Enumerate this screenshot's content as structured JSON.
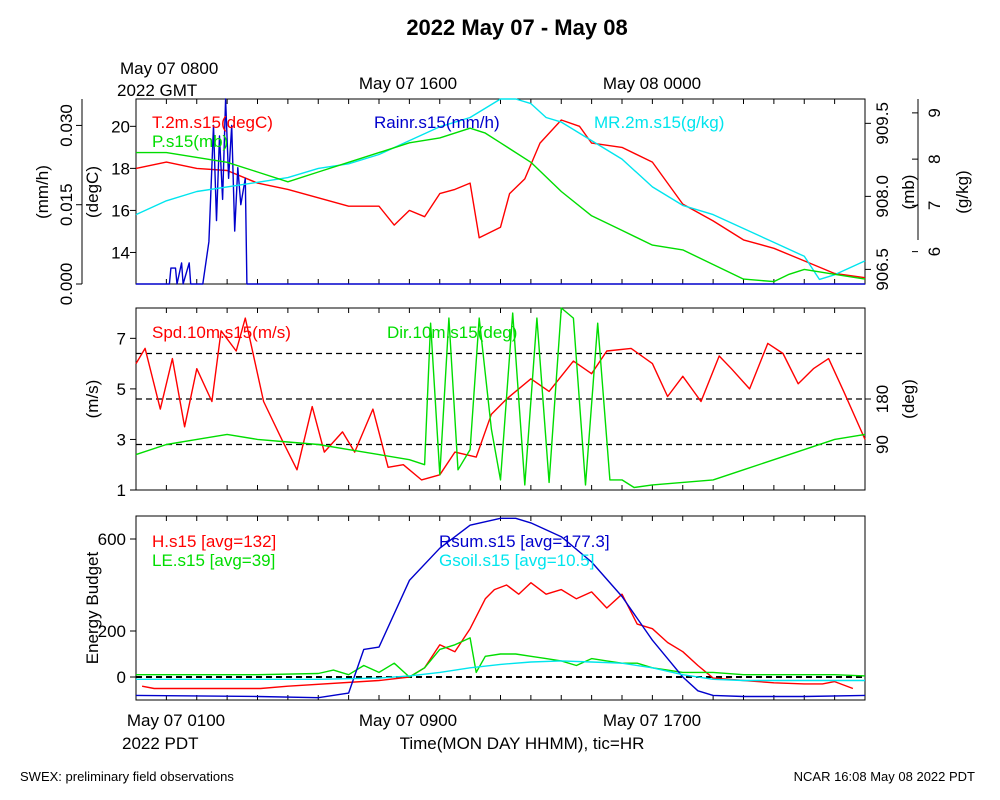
{
  "title": "2022 May 07 - May 08",
  "top_time_labels": {
    "first_line1": "May 07 0800",
    "first_line2": "2022 GMT",
    "second": "May 07 1600",
    "third": "May 08 0000"
  },
  "bottom_time_labels": {
    "first_line1": "May 07 0100",
    "first_line2": "2022 PDT",
    "second": "May 07 0900",
    "third": "May 07 1700",
    "axis_title": "Time(MON DAY HHMM), tic=HR"
  },
  "footer": {
    "left": "SWEX: preliminary field observations",
    "right": "NCAR 16:08 May 08 2022 PDT"
  },
  "colors": {
    "red": "#ff0000",
    "green": "#00dd00",
    "blue": "#0000cc",
    "cyan": "#00e5ee",
    "black": "#000000"
  },
  "chart_data": [
    {
      "type": "line",
      "panel": "top",
      "x_unit": "hours since May 07 0100 PDT",
      "xlim": [
        0,
        24
      ],
      "axes": {
        "rain": {
          "label": "(mm/h)",
          "ticks": [
            "0.000",
            "0.015",
            "0.030"
          ],
          "ylim": [
            0,
            0.035
          ]
        },
        "temp": {
          "label": "(degC)",
          "ticks": [
            "14",
            "16",
            "18",
            "20"
          ],
          "ylim": [
            12.5,
            21.3
          ]
        },
        "press": {
          "label": "(mb)",
          "ticks": [
            "906.5",
            "908.0",
            "909.5"
          ],
          "ylim": [
            906.2,
            910.0
          ]
        },
        "mr": {
          "label": "(g/kg)",
          "ticks": [
            "6",
            "7",
            "8",
            "9"
          ],
          "ylim": [
            5.3,
            9.3
          ]
        }
      },
      "series": [
        {
          "name": "T.2m.s15(degC)",
          "color": "#ff0000",
          "axis": "temp",
          "x": [
            0,
            1,
            2,
            3,
            4,
            5,
            6,
            7,
            8,
            8.5,
            9,
            9.5,
            10,
            10.5,
            11,
            11.3,
            12,
            12.3,
            12.8,
            13.3,
            14,
            14.6,
            15,
            16,
            17,
            18,
            19,
            20,
            21,
            22,
            23,
            24
          ],
          "y": [
            18.0,
            18.3,
            18.0,
            17.9,
            17.3,
            17.0,
            16.6,
            16.2,
            16.2,
            15.3,
            16.0,
            15.7,
            16.8,
            17.0,
            17.3,
            14.7,
            15.2,
            16.8,
            17.5,
            19.2,
            20.3,
            20.0,
            19.2,
            19.0,
            18.3,
            16.3,
            15.5,
            14.6,
            14.2,
            13.6,
            13.0,
            12.8
          ]
        },
        {
          "name": "Rainr.s15(mm/h)",
          "color": "#0000cc",
          "axis": "rain",
          "x": [
            0,
            1.1,
            1.15,
            1.3,
            1.35,
            1.5,
            1.55,
            1.75,
            1.8,
            2.0,
            2.2,
            2.4,
            2.55,
            2.65,
            2.75,
            2.85,
            2.95,
            3.05,
            3.15,
            3.25,
            3.35,
            3.45,
            3.6,
            3.65,
            24
          ],
          "y": [
            0,
            0,
            0.003,
            0.003,
            0,
            0.004,
            0,
            0.004,
            0,
            0,
            0,
            0.008,
            0.03,
            0.012,
            0.028,
            0.016,
            0.035,
            0.02,
            0.03,
            0.01,
            0.022,
            0.015,
            0.02,
            0,
            0
          ]
        },
        {
          "name": "MR.2m.s15(g/kg)",
          "color": "#00e5ee",
          "axis": "mr",
          "x": [
            0,
            1,
            2,
            3,
            4,
            5,
            6,
            7,
            8,
            9,
            10,
            11,
            12,
            12.5,
            13,
            13.5,
            14,
            15,
            16,
            17,
            18,
            19,
            20,
            21,
            22,
            22.5,
            23,
            24
          ],
          "y": [
            6.8,
            7.1,
            7.3,
            7.4,
            7.5,
            7.6,
            7.8,
            7.9,
            8.1,
            8.4,
            8.7,
            8.9,
            9.3,
            9.3,
            9.2,
            8.9,
            8.8,
            8.4,
            8.0,
            7.4,
            7.0,
            6.8,
            6.5,
            6.2,
            5.9,
            5.4,
            5.5,
            5.8
          ]
        },
        {
          "name": "P.s15(mb)",
          "color": "#00dd00",
          "axis": "press",
          "x": [
            0,
            1,
            2,
            3,
            4,
            5,
            6,
            7,
            8,
            9,
            10,
            11,
            11.5,
            12,
            13,
            14,
            15,
            16,
            17,
            18,
            19,
            20,
            21,
            21.5,
            22,
            23,
            24
          ],
          "y": [
            908.9,
            908.9,
            908.8,
            908.7,
            908.5,
            908.3,
            908.5,
            908.7,
            908.9,
            909.1,
            909.2,
            909.4,
            909.3,
            909.1,
            908.7,
            908.1,
            907.6,
            907.3,
            907.0,
            906.9,
            906.6,
            906.3,
            906.25,
            906.4,
            906.5,
            906.4,
            906.3
          ]
        }
      ]
    },
    {
      "type": "line",
      "panel": "middle",
      "x_unit": "hours since May 07 0100 PDT",
      "xlim": [
        0,
        24
      ],
      "axes": {
        "spd": {
          "label": "(m/s)",
          "ticks": [
            "1",
            "3",
            "5",
            "7"
          ],
          "ylim": [
            1,
            8.2
          ]
        },
        "dir": {
          "label": "(deg)",
          "ticks": [
            "90",
            "180"
          ],
          "ylim": [
            0,
            360
          ]
        }
      },
      "reference_lines_deg": [
        90,
        180,
        270
      ],
      "series": [
        {
          "name": "Spd.10m.s15(m/s)",
          "color": "#ff0000",
          "axis": "spd",
          "x": [
            0,
            0.3,
            0.8,
            1.2,
            1.6,
            2.0,
            2.5,
            2.8,
            3.3,
            3.6,
            4.2,
            4.8,
            5.3,
            5.8,
            6.2,
            6.8,
            7.2,
            7.8,
            8.3,
            8.8,
            9.4,
            10.0,
            10.5,
            11.2,
            11.7,
            12.2,
            13.0,
            13.6,
            14.4,
            15.0,
            15.5,
            16.3,
            17.0,
            17.5,
            18.0,
            18.6,
            19.2,
            19.6,
            20.2,
            20.8,
            21.3,
            21.8,
            22.3,
            22.8,
            23.3,
            24
          ],
          "y": [
            6.0,
            6.6,
            4.2,
            6.2,
            3.5,
            5.8,
            4.5,
            7.3,
            6.5,
            7.8,
            4.5,
            3.0,
            1.8,
            4.3,
            2.5,
            3.3,
            2.5,
            4.2,
            1.9,
            2.0,
            1.4,
            1.6,
            2.5,
            2.3,
            4.0,
            4.6,
            5.4,
            4.9,
            6.1,
            5.6,
            6.5,
            6.6,
            6.0,
            4.7,
            5.5,
            4.5,
            6.3,
            5.8,
            5.0,
            6.8,
            6.4,
            5.2,
            5.8,
            6.2,
            4.9,
            3.0
          ]
        },
        {
          "name": "Dir.10m.s15(deg)",
          "color": "#00dd00",
          "axis": "dir",
          "x": [
            0,
            1,
            2,
            3,
            4,
            5,
            6,
            7,
            8,
            9,
            9.5,
            9.7,
            10,
            10.3,
            10.6,
            11,
            11.3,
            11.7,
            12,
            12.4,
            12.8,
            13.2,
            13.6,
            14,
            14.4,
            14.8,
            15.2,
            15.6,
            16,
            16.4,
            17,
            18,
            19,
            20,
            21,
            22,
            23,
            24
          ],
          "y": [
            70,
            90,
            100,
            110,
            100,
            95,
            90,
            80,
            70,
            60,
            50,
            330,
            30,
            340,
            40,
            80,
            340,
            120,
            20,
            350,
            10,
            340,
            15,
            360,
            340,
            10,
            330,
            20,
            20,
            5,
            10,
            15,
            20,
            40,
            60,
            80,
            100,
            110
          ]
        }
      ]
    },
    {
      "type": "line",
      "panel": "bottom",
      "x_unit": "hours since May 07 0100 PDT",
      "xlim": [
        0,
        24
      ],
      "ylabel": "Energy Budget",
      "ylim": [
        -100,
        700
      ],
      "yticks": [
        "0",
        "200",
        "600"
      ],
      "reference_lines": [
        0
      ],
      "series": [
        {
          "name": "H.s15 [avg=132]",
          "color": "#ff0000",
          "x": [
            0.2,
            0.6,
            4.1,
            5,
            8,
            9,
            9.5,
            10,
            10.5,
            11,
            11.5,
            11.8,
            12.2,
            12.6,
            13,
            13.5,
            14,
            14.5,
            15,
            15.5,
            16,
            16.5,
            17,
            17.5,
            18,
            18.5,
            19,
            20,
            21,
            22,
            22.6,
            23,
            23.6
          ],
          "y": [
            -40,
            -50,
            -50,
            -40,
            -15,
            0,
            40,
            140,
            110,
            210,
            340,
            380,
            400,
            360,
            410,
            360,
            380,
            340,
            370,
            300,
            360,
            230,
            210,
            150,
            110,
            50,
            -5,
            -15,
            -25,
            -30,
            -30,
            -20,
            -50
          ]
        },
        {
          "name": "LE.s15 [avg=39]",
          "color": "#00dd00",
          "x": [
            0,
            2,
            4,
            6,
            6.5,
            7,
            7.5,
            8,
            8.5,
            9,
            9.5,
            10,
            10.5,
            11,
            11.2,
            11.5,
            12,
            12.5,
            13,
            13.5,
            14,
            14.5,
            15,
            15.5,
            16,
            16.5,
            17,
            17.5,
            18,
            19,
            20,
            21,
            22,
            23,
            24
          ],
          "y": [
            10,
            10,
            10,
            15,
            30,
            10,
            50,
            20,
            60,
            0,
            40,
            120,
            140,
            170,
            20,
            90,
            100,
            100,
            90,
            80,
            70,
            50,
            80,
            70,
            60,
            60,
            40,
            30,
            20,
            20,
            10,
            10,
            10,
            10,
            5
          ]
        },
        {
          "name": "Rsum.s15 [avg=177.3]",
          "color": "#0000cc",
          "x": [
            0,
            4,
            6,
            7,
            7.5,
            8,
            9,
            10,
            11,
            12,
            12.5,
            13,
            14,
            15,
            16,
            17,
            17.5,
            18,
            18.5,
            19,
            20,
            22,
            24
          ],
          "y": [
            -80,
            -85,
            -90,
            -70,
            120,
            130,
            420,
            560,
            660,
            690,
            690,
            670,
            610,
            500,
            350,
            160,
            80,
            0,
            -60,
            -80,
            -85,
            -85,
            -80
          ]
        },
        {
          "name": "Gsoil.s15 [avg=10.5]",
          "color": "#00e5ee",
          "x": [
            0,
            6,
            8,
            9,
            10,
            11,
            12,
            13,
            14,
            15,
            16,
            17,
            18,
            19,
            20,
            22,
            24
          ],
          "y": [
            -10,
            -10,
            -5,
            5,
            20,
            40,
            55,
            65,
            70,
            65,
            60,
            40,
            10,
            -10,
            -15,
            -15,
            -15
          ]
        }
      ]
    }
  ]
}
